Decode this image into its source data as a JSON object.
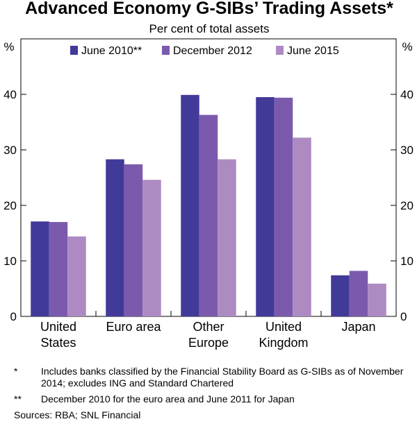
{
  "chart_data": {
    "type": "bar",
    "title": "Advanced Economy G-SIBs’ Trading Assets*",
    "subtitle": "Per cent of total assets",
    "y_unit_left": "%",
    "y_unit_right": "%",
    "ylim": [
      0,
      50
    ],
    "yticks": [
      "0",
      "10",
      "20",
      "30",
      "40"
    ],
    "categories": [
      [
        "United",
        "States"
      ],
      [
        "Euro area"
      ],
      [
        "Other",
        "Europe"
      ],
      [
        "United",
        "Kingdom"
      ],
      [
        "Japan"
      ]
    ],
    "series": [
      {
        "name": "June 2010**",
        "color": "#423a99",
        "values": [
          17.1,
          28.3,
          39.9,
          39.5,
          7.4
        ]
      },
      {
        "name": "December 2012",
        "color": "#7b5aad",
        "values": [
          17.0,
          27.4,
          36.3,
          39.4,
          8.2
        ]
      },
      {
        "name": "June 2015",
        "color": "#ad8bc2",
        "values": [
          14.4,
          24.6,
          28.3,
          32.2,
          5.9
        ]
      }
    ]
  },
  "footnotes": [
    {
      "mark": "*",
      "text": "Includes banks classified by the Financial Stability Board as G-SIBs as of November 2014; excludes ING and Standard Chartered"
    },
    {
      "mark": "**",
      "text": "December 2010 for the euro area and June 2011 for Japan"
    }
  ],
  "sources": "Sources:  RBA; SNL Financial"
}
